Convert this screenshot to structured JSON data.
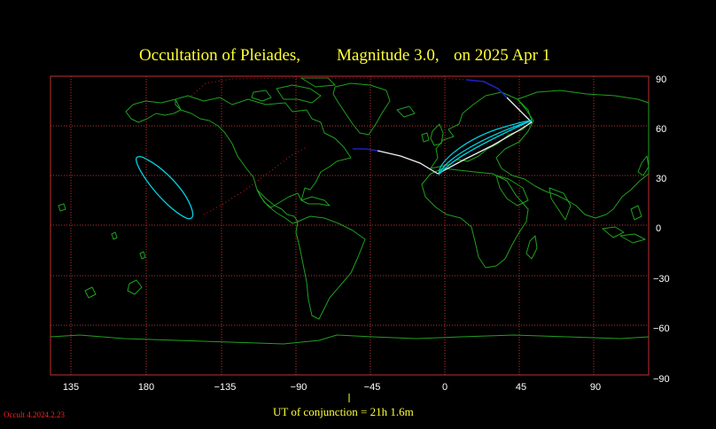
{
  "title": {
    "object": "Occultation  of  Pleiades,",
    "magnitude": "Magnitude 3.0,",
    "date": "on  2025 Apr  1"
  },
  "axes": {
    "lon_ticks": [
      "135",
      "180",
      "−135",
      "−90",
      "−45",
      "0",
      "45",
      "90"
    ],
    "lat_ticks": [
      "90",
      "60",
      "30",
      "0",
      "−30",
      "−60",
      "−90"
    ]
  },
  "conjunction_label": "UT of conjunction = 21h  1.6m",
  "version_label": "Occult 4.2024.2.23",
  "colors": {
    "title": "#ffff33",
    "grid": "#c03030",
    "coastline": "#1fa01f",
    "limit_line_visible": "#f0f0f0",
    "limit_line_sunlit": "#2020c0",
    "daylight_line": "#c02020",
    "graze_loop": "#00d0e0"
  }
}
